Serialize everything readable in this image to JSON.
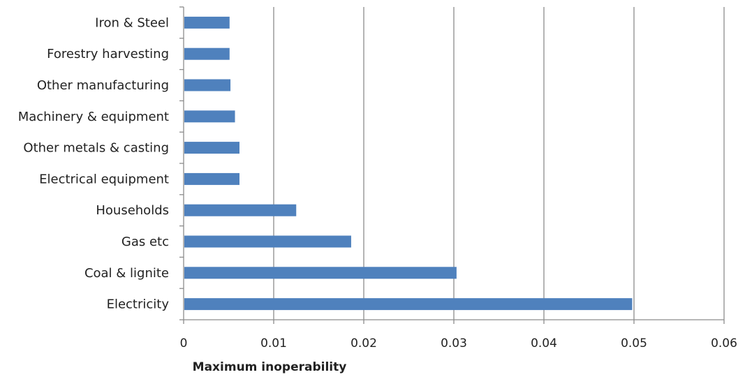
{
  "chart_data": {
    "type": "bar",
    "orientation": "horizontal",
    "categories": [
      "Iron & Steel",
      "Forestry harvesting",
      "Other manufacturing",
      "Machinery & equipment",
      "Other metals & casting",
      "Electrical equipment",
      "Households",
      "Gas etc",
      "Coal & lignite",
      "Electricity"
    ],
    "values": [
      0.0051,
      0.0051,
      0.0052,
      0.0057,
      0.0062,
      0.0062,
      0.0125,
      0.0186,
      0.0303,
      0.0498
    ],
    "title": "",
    "xlabel": "Maximum inoperability",
    "ylabel": "",
    "xlim": [
      0,
      0.06
    ],
    "xticks": [
      0,
      0.01,
      0.02,
      0.03,
      0.04,
      0.05,
      0.06
    ],
    "xtick_labels": [
      "0",
      "0.01",
      "0.02",
      "0.03",
      "0.04",
      "0.05",
      "0.06"
    ],
    "grid": "vertical",
    "legend": "none",
    "bar_color": "#4f81bd",
    "grid_color": "#8c8c8c",
    "axis_color": "#8c8c8c"
  }
}
